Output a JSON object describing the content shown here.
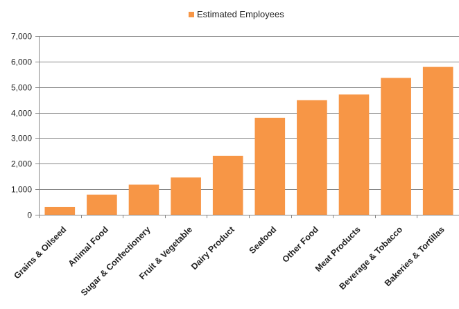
{
  "chart_data": {
    "type": "bar",
    "categories": [
      "Grains & Oilseed",
      "Animal Food",
      "Sugar & Confectionery",
      "Fruit & Vegetable",
      "Dairy Product",
      "Seafood",
      "Other Food",
      "Meat Products",
      "Beverage & Tobacco",
      "Bakeries & Tortillas"
    ],
    "series": [
      {
        "name": "Estimated Employees",
        "values": [
          300,
          790,
          1180,
          1460,
          2310,
          3800,
          4490,
          4710,
          5360,
          5790
        ]
      }
    ],
    "ylim": [
      0,
      7000
    ],
    "yticks": [
      0,
      1000,
      2000,
      3000,
      4000,
      5000,
      6000,
      7000
    ],
    "ytick_labels": [
      "0",
      "1,000",
      "2,000",
      "3,000",
      "4,000",
      "5,000",
      "6,000",
      "7,000"
    ],
    "grid": true,
    "legend_position": "top-center",
    "colors": {
      "bar": "#F79646",
      "grid": "#868686",
      "axis": "#868686",
      "text": "#222222"
    }
  }
}
